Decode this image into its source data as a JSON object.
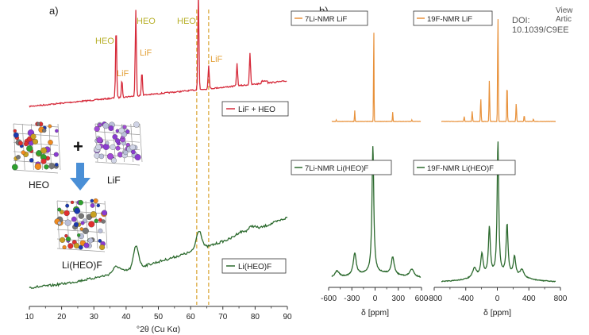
{
  "header": {
    "view_article": "View Artic",
    "doi": "DOI: 10.1039/C9EE"
  },
  "panel_a": {
    "label": "a)",
    "xlabel": "°2θ (Cu Kα)",
    "xticks": [
      "10",
      "20",
      "30",
      "40",
      "50",
      "60",
      "70",
      "80",
      "90"
    ],
    "legend_top": "LiF + HEO",
    "legend_bottom": "Li(HEO)F",
    "peak_labels": [
      {
        "text": "HEO",
        "color": "#b7b02a"
      },
      {
        "text": "LiF",
        "color": "#e3a13a"
      },
      {
        "text": "HEO",
        "color": "#b7b02a"
      },
      {
        "text": "LiF",
        "color": "#e3a13a"
      },
      {
        "text": "HEO",
        "color": "#b7b02a"
      },
      {
        "text": "LiF",
        "color": "#e3a13a"
      }
    ],
    "schematic_labels": {
      "heo": "HEO",
      "lif": "LiF",
      "product": "Li(HEO)F",
      "plus": "+"
    }
  },
  "panel_b": {
    "label": "b)",
    "legend_li_lif": "7Li-NMR LiF",
    "legend_f_lif": "19F-NMR LiF",
    "legend_li_heo": "7Li-NMR Li(HEO)F",
    "legend_f_heo": "19F-NMR Li(HEO)F",
    "left_xlabel": "δ [ppm]",
    "right_xlabel": "δ [ppm]",
    "left_xticks": [
      "-600",
      "-300",
      "0",
      "300",
      "600"
    ],
    "right_xticks": [
      "-800",
      "-400",
      "0",
      "400",
      "800"
    ]
  },
  "colors": {
    "xrd_lif_heo": "#d62a3a",
    "xrd_li_heo_f": "#2c6a2e",
    "nmr_lif": "#e8913a",
    "nmr_heo": "#2c6a2e",
    "dashed": "#d9a431"
  },
  "chart_data": [
    {
      "type": "line",
      "title": "",
      "xlabel": "°2θ (Cu Kα)",
      "ylabel": "",
      "xlim": [
        10,
        90
      ],
      "series": [
        {
          "name": "LiF + HEO",
          "peaks_2theta": [
            36.9,
            38.7,
            43.0,
            44.9,
            62.4,
            65.6,
            74.4,
            78.4
          ]
        },
        {
          "name": "Li(HEO)F",
          "peaks_2theta": [
            37.0,
            43.1,
            62.6,
            75.3,
            79.0
          ]
        }
      ],
      "dashed_lines_2theta": [
        61.9,
        65.6
      ]
    },
    {
      "type": "line",
      "xlabel": "δ [ppm]",
      "xlim": [
        -600,
        600
      ],
      "series": [
        {
          "name": "7Li-NMR LiF",
          "peaks_ppm": [
            0,
            -265,
            265,
            -500,
            500
          ]
        },
        {
          "name": "7Li-NMR Li(HEO)F",
          "peaks_ppm": [
            0,
            -265,
            265,
            -500,
            500
          ]
        }
      ]
    },
    {
      "type": "line",
      "xlabel": "δ [ppm]",
      "xlim": [
        -800,
        800
      ],
      "series": [
        {
          "name": "19F-NMR LiF",
          "peaks_ppm": [
            0,
            -120,
            120,
            -240,
            240,
            -360,
            360,
            -480,
            480
          ]
        },
        {
          "name": "19F-NMR Li(HEO)F",
          "peaks_ppm": [
            0,
            -120,
            120,
            -240,
            240,
            -360,
            360
          ]
        }
      ]
    }
  ]
}
